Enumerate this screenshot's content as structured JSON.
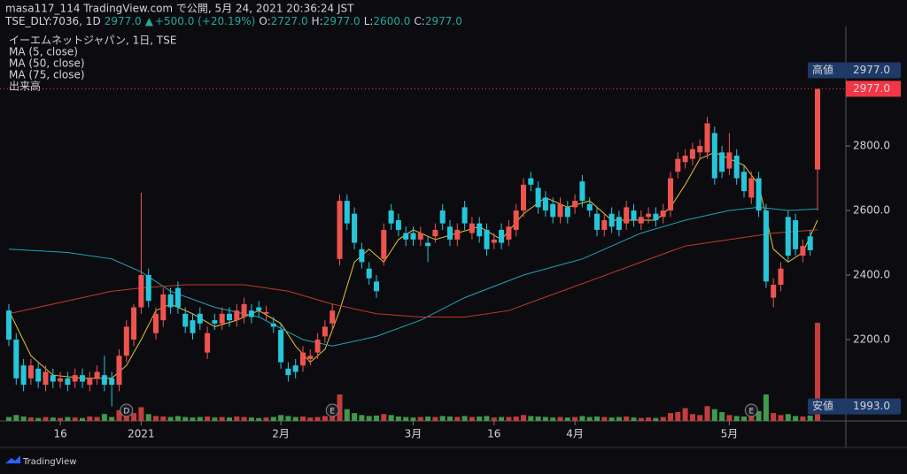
{
  "publisher": "masa117_114 TradingView.com で公開, 5月 24, 2021 20:36:24 JST",
  "footer": "TradingView",
  "chart_data": {
    "type": "candlestick",
    "symbol": "TSE_DLY:7036, 1D",
    "last": "2977.0",
    "arrow": "▲",
    "change": "+500.0 (+20.19%)",
    "ohlc": [
      {
        "label": "O:",
        "value": "2727.0"
      },
      {
        "label": "H:",
        "value": "2977.0"
      },
      {
        "label": "L:",
        "value": "2600.0"
      },
      {
        "label": "C:",
        "value": "2977.0"
      }
    ],
    "title": "イーエムネットジャパン, 1日, TSE",
    "volume_name": "出来高",
    "up_color": "#ef5350",
    "down_color": "#26c6da",
    "volume_up_color": "#c43c3c",
    "volume_down_color": "#3f9a4a",
    "open": [
      2290,
      2200,
      2120,
      2080,
      2110,
      2060,
      2090,
      2070,
      2080,
      2070,
      2090,
      2060,
      2080,
      2090,
      2080,
      2060,
      2150,
      2200,
      2300,
      2400,
      2220,
      2260,
      2340,
      2360,
      2280,
      2260,
      2280,
      2160,
      2260,
      2250,
      2280,
      2260,
      2270,
      2290,
      2300,
      2280,
      2250,
      2230,
      2110,
      2120,
      2120,
      2140,
      2160,
      2210,
      2250,
      2450,
      2630,
      2590,
      2480,
      2420,
      2380,
      2450,
      2600,
      2570,
      2530,
      2530,
      2510,
      2500,
      2520,
      2600,
      2550,
      2510,
      2610,
      2530,
      2560,
      2540,
      2500,
      2540,
      2510,
      2540,
      2600,
      2700,
      2670,
      2640,
      2620,
      2580,
      2610,
      2610,
      2690,
      2620,
      2590,
      2540,
      2590,
      2580,
      2560,
      2600,
      2560,
      2580,
      2590,
      2580,
      2600,
      2720,
      2750,
      2760,
      2780,
      2780,
      2840,
      2780,
      2730,
      2770,
      2720,
      2640,
      2700,
      2600,
      2330,
      2370,
      2580,
      2570,
      2460,
      2520,
      2727
    ],
    "high": [
      2310,
      2220,
      2140,
      2140,
      2130,
      2120,
      2110,
      2100,
      2100,
      2110,
      2110,
      2100,
      2120,
      2150,
      2100,
      2170,
      2260,
      2310,
      2655,
      2420,
      2300,
      2360,
      2360,
      2380,
      2300,
      2280,
      2300,
      2240,
      2280,
      2300,
      2300,
      2310,
      2330,
      2310,
      2320,
      2305,
      2270,
      2250,
      2130,
      2140,
      2180,
      2170,
      2220,
      2260,
      2310,
      2650,
      2650,
      2610,
      2500,
      2440,
      2400,
      2560,
      2620,
      2590,
      2550,
      2550,
      2550,
      2520,
      2560,
      2620,
      2570,
      2560,
      2630,
      2580,
      2580,
      2560,
      2530,
      2560,
      2570,
      2620,
      2700,
      2720,
      2690,
      2660,
      2640,
      2640,
      2630,
      2650,
      2710,
      2640,
      2610,
      2590,
      2610,
      2600,
      2630,
      2620,
      2600,
      2610,
      2610,
      2620,
      2720,
      2780,
      2790,
      2810,
      2820,
      2890,
      2860,
      2800,
      2840,
      2790,
      2740,
      2720,
      2720,
      2620,
      2390,
      2440,
      2600,
      2590,
      2510,
      2540,
      2977
    ],
    "low": [
      2180,
      2060,
      2040,
      2060,
      2050,
      2040,
      2050,
      2050,
      2040,
      2050,
      2050,
      2040,
      2060,
      2040,
      1993,
      2040,
      2130,
      2180,
      2280,
      2300,
      2200,
      2240,
      2280,
      2280,
      2220,
      2200,
      2230,
      2140,
      2230,
      2230,
      2240,
      2240,
      2250,
      2250,
      2270,
      2260,
      2220,
      2110,
      2070,
      2080,
      2100,
      2120,
      2140,
      2190,
      2230,
      2430,
      2540,
      2480,
      2420,
      2370,
      2330,
      2430,
      2540,
      2520,
      2490,
      2490,
      2490,
      2440,
      2500,
      2540,
      2490,
      2490,
      2540,
      2510,
      2500,
      2460,
      2480,
      2480,
      2490,
      2520,
      2580,
      2660,
      2590,
      2580,
      2560,
      2560,
      2560,
      2590,
      2610,
      2580,
      2520,
      2520,
      2530,
      2520,
      2540,
      2550,
      2540,
      2560,
      2550,
      2560,
      2580,
      2700,
      2730,
      2740,
      2760,
      2760,
      2680,
      2700,
      2710,
      2680,
      2640,
      2620,
      2580,
      2360,
      2300,
      2350,
      2440,
      2460,
      2440,
      2460,
      2600
    ],
    "close": [
      2200,
      2080,
      2060,
      2120,
      2070,
      2100,
      2070,
      2080,
      2060,
      2090,
      2070,
      2080,
      2100,
      2060,
      2060,
      2150,
      2240,
      2300,
      2400,
      2320,
      2280,
      2340,
      2300,
      2300,
      2240,
      2220,
      2250,
      2220,
      2250,
      2280,
      2260,
      2290,
      2310,
      2270,
      2290,
      2285,
      2240,
      2130,
      2090,
      2100,
      2160,
      2150,
      2200,
      2240,
      2290,
      2630,
      2560,
      2500,
      2440,
      2390,
      2350,
      2540,
      2560,
      2540,
      2510,
      2510,
      2530,
      2490,
      2540,
      2560,
      2510,
      2540,
      2560,
      2560,
      2520,
      2480,
      2510,
      2500,
      2550,
      2600,
      2680,
      2680,
      2610,
      2600,
      2580,
      2620,
      2580,
      2630,
      2630,
      2600,
      2540,
      2570,
      2550,
      2540,
      2610,
      2570,
      2580,
      2590,
      2570,
      2600,
      2700,
      2760,
      2770,
      2790,
      2800,
      2870,
      2700,
      2720,
      2780,
      2700,
      2660,
      2700,
      2600,
      2380,
      2370,
      2420,
      2460,
      2480,
      2490,
      2477,
      2977
    ],
    "volume": [
      40,
      60,
      45,
      35,
      30,
      40,
      35,
      30,
      40,
      35,
      30,
      45,
      40,
      70,
      40,
      110,
      60,
      80,
      140,
      70,
      50,
      45,
      40,
      50,
      40,
      35,
      40,
      45,
      35,
      40,
      35,
      45,
      40,
      35,
      30,
      35,
      40,
      60,
      50,
      40,
      45,
      35,
      40,
      50,
      60,
      270,
      120,
      80,
      60,
      50,
      55,
      70,
      60,
      45,
      40,
      35,
      40,
      45,
      40,
      50,
      45,
      40,
      50,
      40,
      45,
      50,
      35,
      40,
      40,
      45,
      60,
      50,
      45,
      40,
      35,
      40,
      35,
      40,
      50,
      40,
      45,
      40,
      35,
      40,
      45,
      35,
      30,
      35,
      30,
      40,
      80,
      90,
      130,
      70,
      60,
      150,
      120,
      90,
      60,
      50,
      45,
      60,
      100,
      270,
      80,
      60,
      70,
      50,
      45,
      55,
      1000
    ],
    "vlim": [
      0,
      1100
    ],
    "series": [
      {
        "name": "MA (5, close)",
        "color": "#e8c43a",
        "x": [
          0,
          3,
          6,
          10,
          14,
          16,
          18,
          20,
          22,
          25,
          28,
          31,
          34,
          37,
          39,
          41,
          43,
          45,
          47,
          49,
          51,
          53,
          55,
          58,
          61,
          64,
          67,
          70,
          73,
          76,
          79,
          82,
          85,
          88,
          90,
          92,
          94,
          96,
          98,
          100,
          102,
          104,
          106,
          108,
          110
        ],
        "values": [
          2290,
          2150,
          2090,
          2080,
          2080,
          2120,
          2200,
          2290,
          2310,
          2280,
          2240,
          2260,
          2290,
          2250,
          2180,
          2130,
          2170,
          2290,
          2440,
          2480,
          2440,
          2510,
          2540,
          2510,
          2530,
          2550,
          2510,
          2590,
          2640,
          2610,
          2630,
          2570,
          2570,
          2570,
          2610,
          2680,
          2760,
          2780,
          2760,
          2740,
          2680,
          2480,
          2440,
          2470,
          2570
        ]
      },
      {
        "name": "MA (50, close)",
        "color": "#1fa3b8",
        "x": [
          0,
          8,
          14,
          18,
          22,
          28,
          34,
          40,
          44,
          50,
          56,
          62,
          70,
          78,
          86,
          92,
          98,
          102,
          106,
          110
        ],
        "values": [
          2480,
          2470,
          2450,
          2410,
          2350,
          2300,
          2270,
          2200,
          2180,
          2210,
          2260,
          2330,
          2400,
          2450,
          2530,
          2570,
          2600,
          2610,
          2600,
          2605
        ]
      },
      {
        "name": "MA (75, close)",
        "color": "#c0392b",
        "x": [
          0,
          8,
          14,
          18,
          24,
          32,
          38,
          44,
          50,
          56,
          62,
          68,
          74,
          80,
          86,
          92,
          98,
          104,
          110
        ],
        "values": [
          2280,
          2320,
          2350,
          2360,
          2370,
          2370,
          2350,
          2310,
          2280,
          2270,
          2270,
          2290,
          2340,
          2390,
          2440,
          2490,
          2510,
          2530,
          2540
        ]
      }
    ],
    "ylim": [
      1948,
      3170
    ],
    "yticks": [
      {
        "value": 2200,
        "label": "2200.0"
      },
      {
        "value": 2400,
        "label": "2400.0"
      },
      {
        "value": 2600,
        "label": "2600.0"
      },
      {
        "value": 2800,
        "label": "2800.0"
      }
    ],
    "xticks": [
      {
        "value": 7,
        "label": "16"
      },
      {
        "value": 18,
        "label": "2021"
      },
      {
        "value": 37,
        "label": "2月"
      },
      {
        "value": 55,
        "label": "3月"
      },
      {
        "value": 66,
        "label": "16"
      },
      {
        "value": 77,
        "label": "4月"
      },
      {
        "value": 98,
        "label": "5月"
      }
    ],
    "high_marker": {
      "label": "高値",
      "value": 2977,
      "value_label": "2977.0"
    },
    "low_marker": {
      "label": "安値",
      "value": 1993,
      "value_label": "1993.0"
    },
    "last_price": {
      "value": 2977,
      "value_label": "2977.0",
      "color": "#f23645"
    },
    "events": [
      {
        "index": 16,
        "label": "D"
      },
      {
        "index": 44,
        "label": "E"
      },
      {
        "index": 101,
        "label": "E"
      }
    ]
  }
}
